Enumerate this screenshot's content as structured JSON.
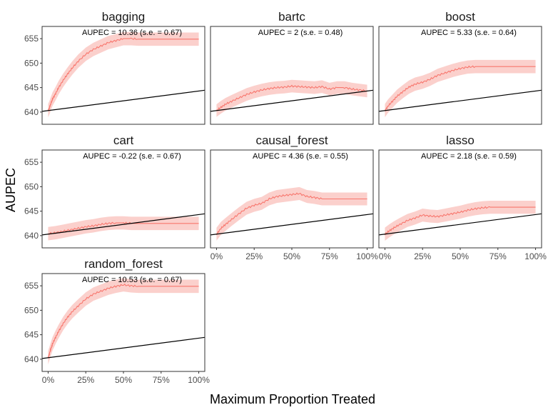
{
  "chart_data": {
    "type": "line",
    "xlabel": "Maximum Proportion Treated",
    "ylabel": "AUPEC",
    "xlim": [
      0,
      1
    ],
    "ylim": [
      637.5,
      657.5
    ],
    "y_ticks": [
      640,
      645,
      650,
      655
    ],
    "x_ticks": [
      0,
      0.25,
      0.5,
      0.75,
      1
    ],
    "x_tick_labels": [
      "0%",
      "25%",
      "50%",
      "75%",
      "100%"
    ],
    "grid": false,
    "colors": {
      "series_line": "#f8766d",
      "ribbon": "#fbd0cc",
      "baseline": "#000000"
    },
    "baseline": {
      "x": [
        0,
        1
      ],
      "y": [
        640.3,
        644.3
      ]
    },
    "panels": [
      {
        "name": "bagging",
        "annotation": "AUPEC = 10.36 (s.e. = 0.67)",
        "se": 0.67,
        "x": [
          0.0,
          0.01,
          0.02,
          0.03,
          0.05,
          0.07,
          0.1,
          0.13,
          0.16,
          0.2,
          0.25,
          0.3,
          0.35,
          0.4,
          0.45,
          0.5,
          0.55,
          0.6,
          0.7,
          0.8,
          0.9,
          1.0
        ],
        "y": [
          640.3,
          641.0,
          641.9,
          642.7,
          643.8,
          645.0,
          646.5,
          647.8,
          649.0,
          650.4,
          651.8,
          652.8,
          653.5,
          654.2,
          654.6,
          655.0,
          655.0,
          654.9,
          654.9,
          654.9,
          654.9,
          654.9
        ]
      },
      {
        "name": "bartc",
        "annotation": "AUPEC = 2 (s.e. = 0.48)",
        "se": 0.48,
        "x": [
          0.0,
          0.03,
          0.06,
          0.1,
          0.15,
          0.2,
          0.25,
          0.3,
          0.35,
          0.4,
          0.45,
          0.5,
          0.55,
          0.6,
          0.65,
          0.7,
          0.75,
          0.8,
          0.85,
          0.9,
          0.95,
          1.0
        ],
        "y": [
          640.3,
          641.0,
          641.6,
          642.2,
          642.9,
          643.6,
          644.1,
          644.5,
          644.8,
          645.0,
          645.1,
          645.3,
          645.2,
          645.1,
          645.0,
          645.2,
          644.7,
          645.0,
          645.0,
          644.7,
          644.5,
          644.3
        ]
      },
      {
        "name": "boost",
        "annotation": "AUPEC = 5.33 (s.e. = 0.64)",
        "se": 0.64,
        "x": [
          0.0,
          0.02,
          0.05,
          0.08,
          0.12,
          0.16,
          0.2,
          0.25,
          0.3,
          0.35,
          0.4,
          0.45,
          0.5,
          0.55,
          0.6,
          0.7,
          0.8,
          0.9,
          1.0
        ],
        "y": [
          640.3,
          641.2,
          642.2,
          643.2,
          644.2,
          645.1,
          645.7,
          646.1,
          646.7,
          647.5,
          648.0,
          648.5,
          648.9,
          649.2,
          649.3,
          649.3,
          649.3,
          649.3,
          649.3
        ]
      },
      {
        "name": "cart",
        "annotation": "AUPEC = -0.22 (s.e. = 0.67)",
        "se": 0.67,
        "x": [
          0.0,
          0.05,
          0.1,
          0.15,
          0.2,
          0.25,
          0.3,
          0.35,
          0.4,
          0.45,
          0.5,
          0.55,
          0.6,
          0.7,
          0.8,
          0.9,
          1.0
        ],
        "y": [
          640.4,
          640.6,
          640.9,
          641.2,
          641.5,
          641.8,
          642.0,
          642.3,
          642.5,
          642.6,
          642.6,
          642.5,
          642.5,
          642.5,
          642.5,
          642.5,
          642.5
        ]
      },
      {
        "name": "causal_forest",
        "annotation": "AUPEC = 4.36 (s.e. = 0.55)",
        "se": 0.55,
        "x": [
          0.0,
          0.03,
          0.06,
          0.1,
          0.15,
          0.2,
          0.25,
          0.3,
          0.35,
          0.4,
          0.45,
          0.5,
          0.55,
          0.6,
          0.65,
          0.7,
          0.75,
          0.8,
          0.9,
          1.0
        ],
        "y": [
          640.3,
          641.5,
          642.3,
          643.3,
          644.5,
          645.6,
          646.2,
          646.6,
          647.5,
          648.0,
          648.2,
          648.4,
          648.6,
          648.0,
          647.8,
          647.5,
          647.5,
          647.5,
          647.5,
          647.5
        ]
      },
      {
        "name": "lasso",
        "annotation": "AUPEC = 2.18 (s.e. = 0.59)",
        "se": 0.59,
        "x": [
          0.0,
          0.03,
          0.06,
          0.1,
          0.15,
          0.2,
          0.25,
          0.3,
          0.35,
          0.4,
          0.45,
          0.5,
          0.55,
          0.6,
          0.65,
          0.7,
          0.8,
          0.9,
          1.0
        ],
        "y": [
          640.3,
          641.0,
          641.6,
          642.3,
          643.1,
          643.6,
          644.2,
          644.0,
          643.9,
          644.2,
          644.5,
          644.8,
          645.2,
          645.5,
          645.7,
          645.8,
          645.8,
          645.8,
          645.8
        ]
      },
      {
        "name": "random_forest",
        "annotation": "AUPEC = 10.53 (s.e. = 0.67)",
        "se": 0.67,
        "x": [
          0.0,
          0.01,
          0.02,
          0.03,
          0.05,
          0.07,
          0.1,
          0.13,
          0.16,
          0.2,
          0.25,
          0.3,
          0.35,
          0.4,
          0.45,
          0.5,
          0.55,
          0.6,
          0.7,
          0.8,
          0.9,
          1.0
        ],
        "y": [
          640.3,
          641.3,
          642.3,
          643.2,
          644.5,
          645.7,
          647.3,
          648.6,
          649.7,
          650.9,
          652.3,
          653.3,
          653.9,
          654.5,
          654.9,
          655.2,
          655.0,
          654.9,
          654.9,
          654.9,
          654.9,
          654.9
        ]
      }
    ]
  }
}
